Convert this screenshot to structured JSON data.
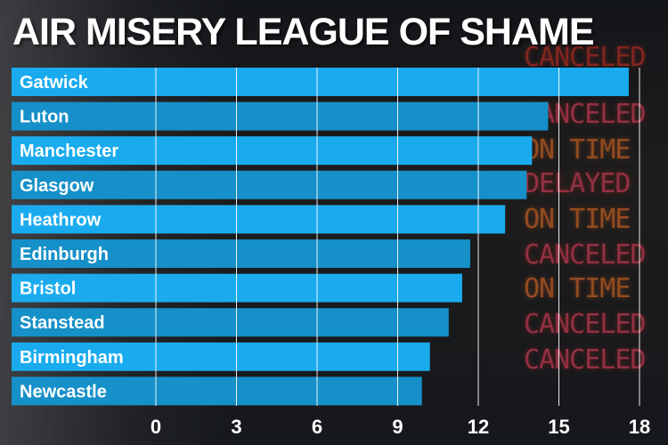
{
  "title": "AIR MISERY LEAGUE OF SHAME",
  "colors": {
    "bar_light": "#1aabee",
    "bar_dark": "#1690c8",
    "gridline": "#ffffff",
    "text": "#ffffff"
  },
  "background": {
    "board_words": [
      "CANCELED",
      "CANCELED",
      "ON TIME",
      "DELAYED",
      "ON TIME",
      "CANCELED",
      "ON TIME",
      "CANCELED",
      "CANCELED"
    ]
  },
  "chart_data": {
    "type": "bar",
    "orientation": "horizontal",
    "categories": [
      "Gatwick",
      "Luton",
      "Manchester",
      "Glasgow",
      "Heathrow",
      "Edinburgh",
      "Bristol",
      "Stanstead",
      "Birmingham",
      "Newcastle"
    ],
    "values": [
      17.6,
      14.6,
      14.0,
      13.8,
      13.0,
      11.7,
      11.4,
      10.9,
      10.2,
      9.9
    ],
    "title": "AIR MISERY LEAGUE OF SHAME",
    "xlabel": "",
    "ylabel": "",
    "xlim": [
      0,
      18
    ],
    "ticks": [
      "0",
      "3",
      "6",
      "9",
      "12",
      "15",
      "18"
    ],
    "grid": true
  }
}
